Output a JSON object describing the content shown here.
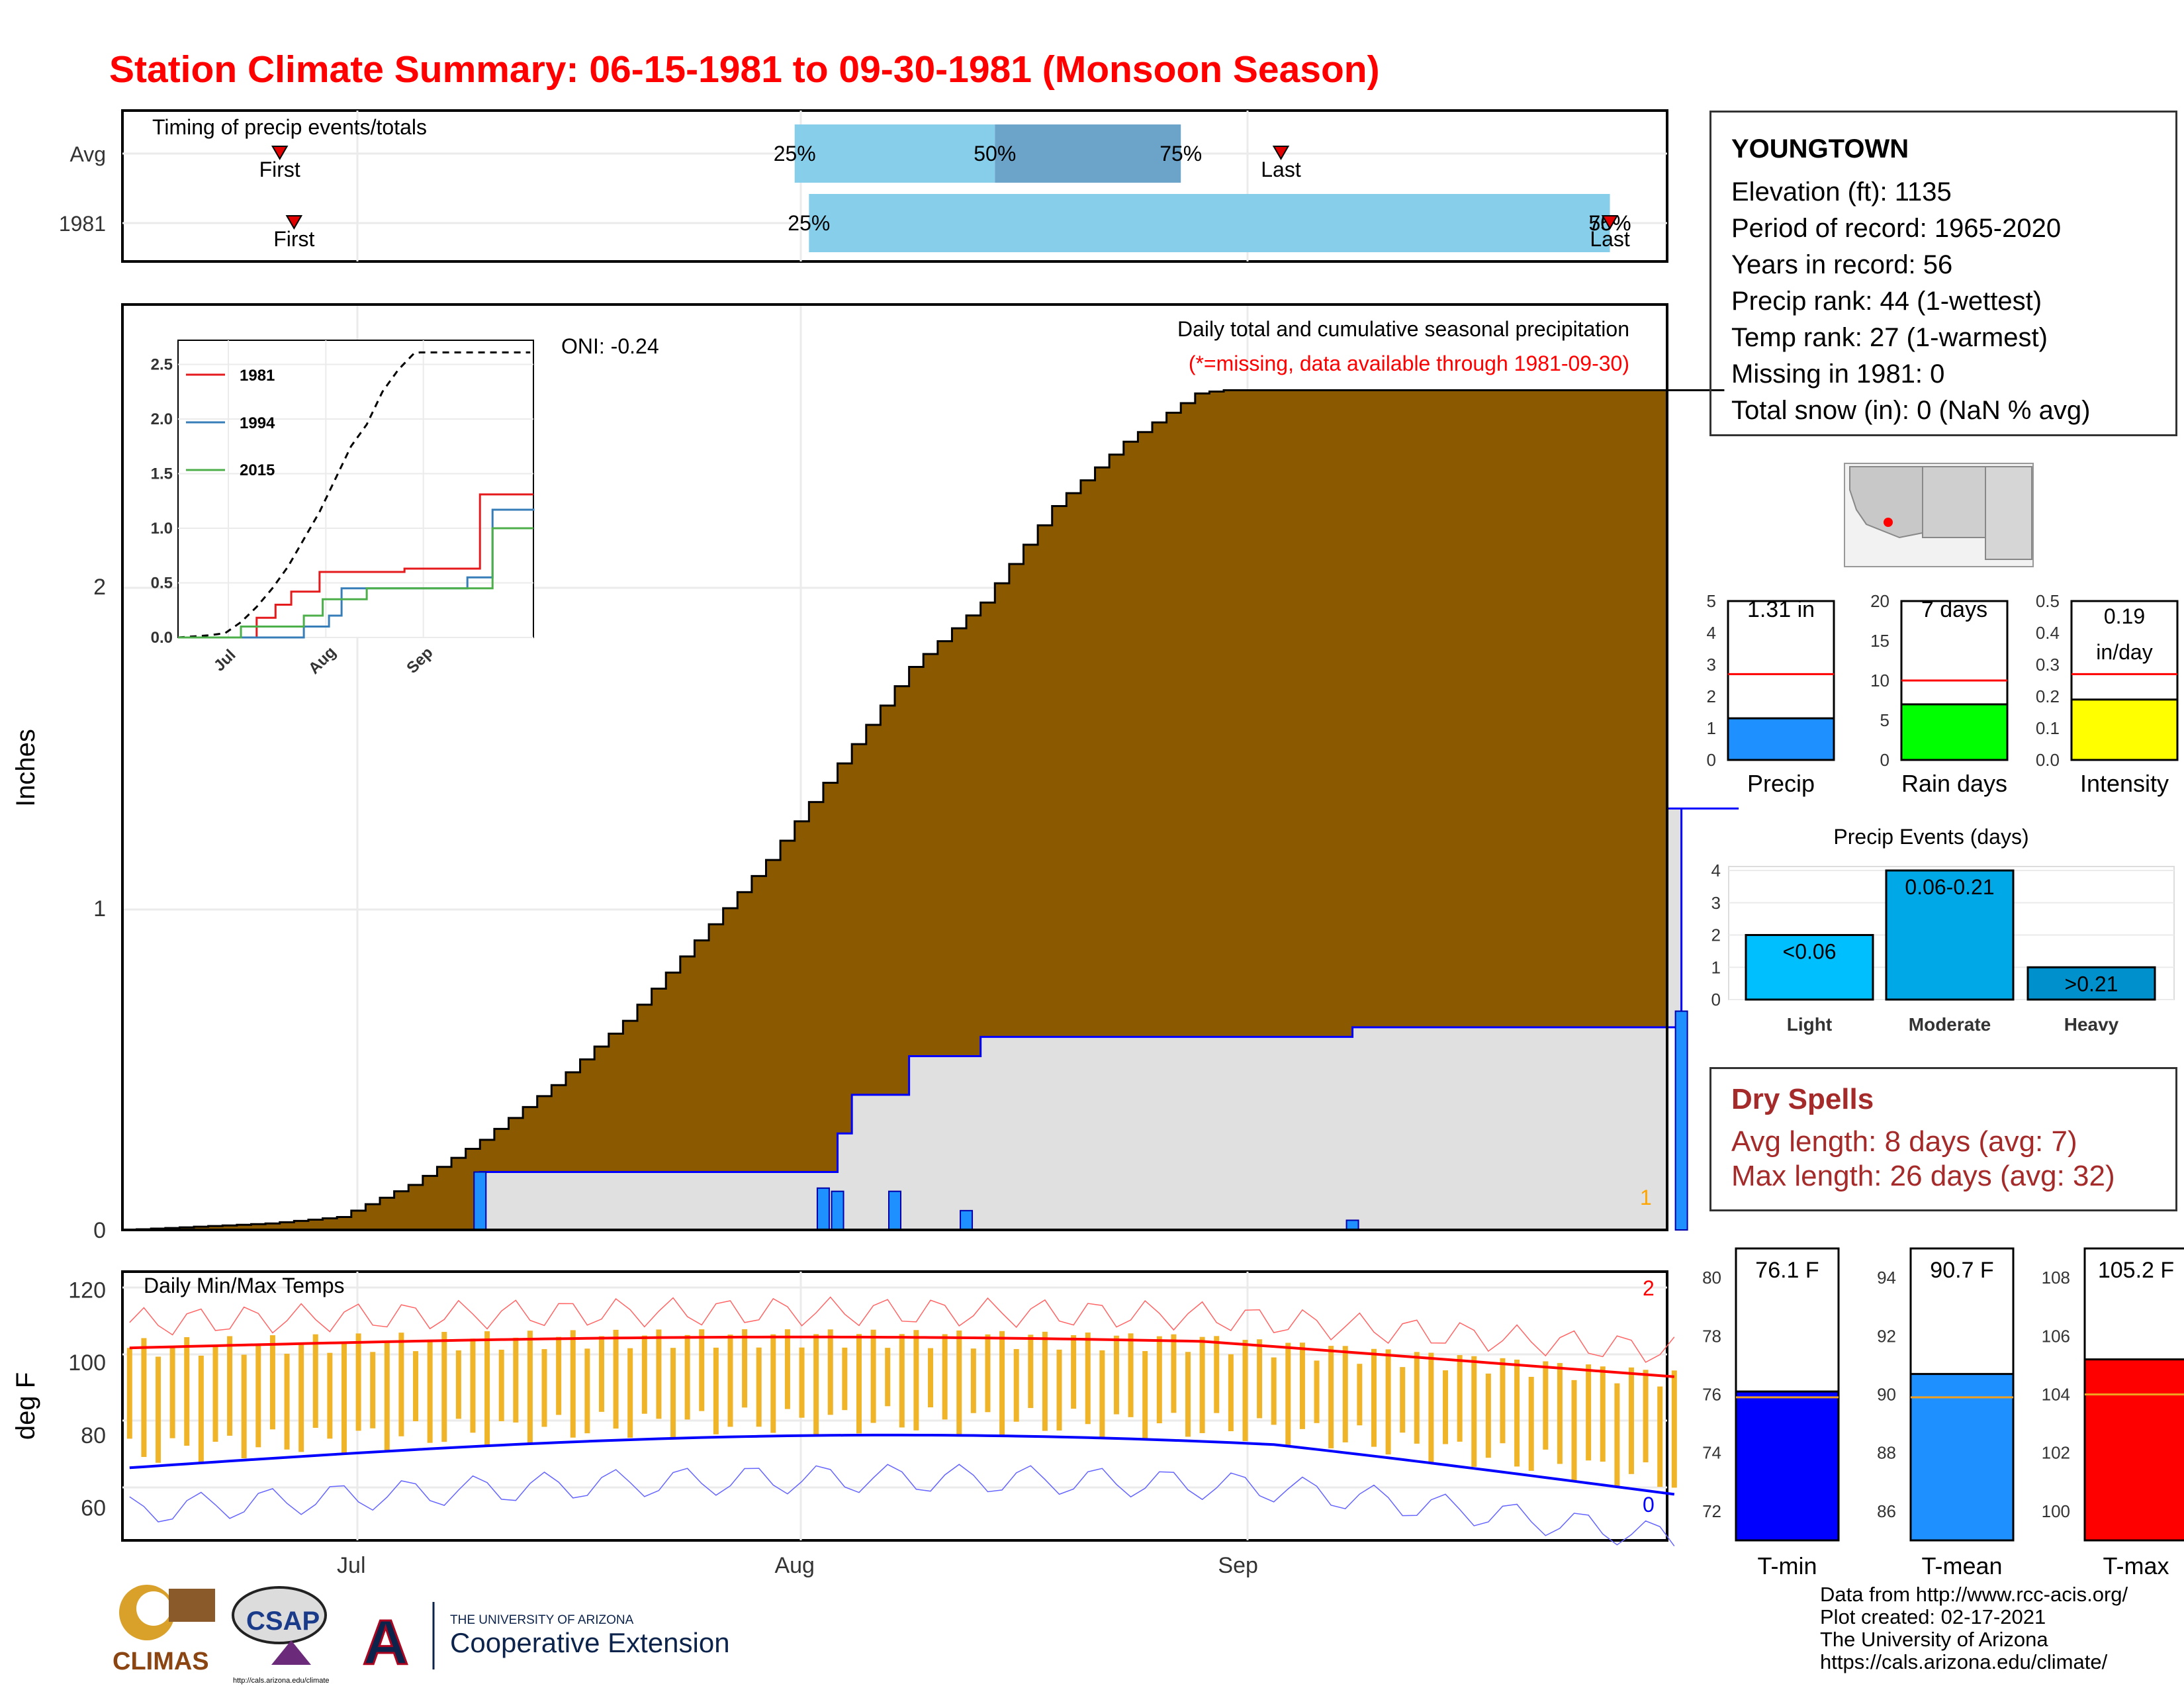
{
  "title": "Station Climate Summary: 06-15-1981 to 09-30-1981 (Monsoon Season)",
  "colors": {
    "title": "#ff0000",
    "cumulative_fill": "#8b5a00",
    "avg_fill": "#e0e0e0",
    "avg_line": "#0000ff",
    "daily_bar": "#1e90ff",
    "temp_bar": "#f0b429",
    "tmax_avg": "#ff0000",
    "tmin_avg": "#0000ff",
    "timing_light": "#87ceeb",
    "timing_dark": "#6ba3c9"
  },
  "timing": {
    "title": "Timing of precip events/totals",
    "rows": [
      {
        "label": "Avg",
        "first_label": "First",
        "last_label": "Last",
        "first": "06-26",
        "last": "09-04",
        "pct_labels": [
          "25%",
          "50%",
          "75%"
        ],
        "q25": "08-01",
        "q50": "08-15",
        "q75": "08-28"
      },
      {
        "label": "1981",
        "first_label": "First",
        "last_label": "Last",
        "first": "06-27",
        "last": "09-27",
        "pct_labels": [
          "25%",
          "50%",
          "75%"
        ],
        "q25": "08-02",
        "q50": "09-27",
        "q75": "09-27"
      }
    ]
  },
  "precip_panel": {
    "title": "Daily total and cumulative seasonal precipitation",
    "subtitle": "(*=missing, data available through 1981-09-30)",
    "oni": "ONI: -0.24",
    "ylabel": "Inches",
    "corner_count": "1"
  },
  "inset": {
    "legend": [
      "1981",
      "1994",
      "2015"
    ],
    "legend_colors": [
      "#e41a1c",
      "#377eb8",
      "#4daf4a"
    ]
  },
  "temp_panel": {
    "title": "Daily Min/Max Temps",
    "ylabel": "deg F",
    "count_max": "2",
    "count_min": "0"
  },
  "station": {
    "name": "YOUNGTOWN",
    "lines": [
      "Elevation (ft): 1135",
      "Period of record: 1965-2020",
      "Years in record: 56",
      "Precip rank: 44 (1-wettest)",
      "Temp rank: 27 (1-warmest)",
      "Missing in 1981: 0",
      "Total snow (in): 0 (NaN % avg)"
    ]
  },
  "summary_bars": [
    {
      "label": "Precip",
      "value_text": "1.31 in",
      "value": 1.31,
      "avg": 2.7,
      "ymax": 5,
      "ticks": [
        "0",
        "1",
        "2",
        "3",
        "4",
        "5"
      ],
      "color": "#1e90ff"
    },
    {
      "label": "Rain days",
      "value_text": "7 days",
      "value": 7,
      "avg": 10,
      "ymax": 20,
      "ticks": [
        "0",
        "5",
        "10",
        "15",
        "20"
      ],
      "color": "#00ff00"
    },
    {
      "label": "Intensity",
      "value_text": "0.19 in/day",
      "value_line1": "0.19",
      "value_line2": "in/day",
      "value": 0.19,
      "avg": 0.27,
      "ymax": 0.5,
      "ticks": [
        "0.0",
        "0.1",
        "0.2",
        "0.3",
        "0.4",
        "0.5"
      ],
      "color": "#ffff00"
    }
  ],
  "events": {
    "title": "Precip Events (days)",
    "categories": [
      "Light",
      "Moderate",
      "Heavy"
    ],
    "labels": [
      "<0.06",
      "0.06-0.21",
      ">0.21"
    ],
    "values": [
      2,
      4,
      1
    ],
    "ticks": [
      "0",
      "1",
      "2",
      "3",
      "4"
    ]
  },
  "dry_spells": {
    "title": "Dry Spells",
    "avg_length": "Avg length: 8 days (avg: 7)",
    "max_length": "Max length: 26 days (avg: 32)"
  },
  "temp_bars": [
    {
      "label": "T-min",
      "value_text": "76.1 F",
      "value": 76.1,
      "avg": 75.9,
      "ymin": 71,
      "ymax": 81,
      "ticks": [
        "72",
        "74",
        "76",
        "78",
        "80"
      ],
      "color": "#0000ff"
    },
    {
      "label": "T-mean",
      "value_text": "90.7 F",
      "value": 90.7,
      "avg": 89.9,
      "ymin": 85,
      "ymax": 95,
      "ticks": [
        "86",
        "88",
        "90",
        "92",
        "94"
      ],
      "color": "#1e90ff"
    },
    {
      "label": "T-max",
      "value_text": "105.2 F",
      "value": 105.2,
      "avg": 104.0,
      "ymin": 99,
      "ymax": 109,
      "ticks": [
        "100",
        "102",
        "104",
        "106",
        "108"
      ],
      "color": "#ff0000"
    }
  ],
  "logos": {
    "climas": "CLIMAS",
    "csap": "CSAP",
    "csap_url": "http://cals.arizona.edu/climate",
    "ua_line1": "THE UNIVERSITY OF ARIZONA",
    "ua_line2": "Cooperative Extension"
  },
  "credits": [
    "Data from http://www.rcc-acis.org/",
    "Plot created: 02-17-2021",
    "The University of Arizona",
    "https://cals.arizona.edu/climate/"
  ],
  "chart_data": [
    {
      "type": "area",
      "name": "cumulative_precip",
      "x_labels": [
        "Jul",
        "Aug",
        "Sep"
      ],
      "yticks": [
        "0",
        "1",
        "2"
      ],
      "ylim": [
        0,
        2.8
      ],
      "cumulative_avg_points": [
        [
          0,
          0
        ],
        [
          10,
          0.01
        ],
        [
          20,
          0.02
        ],
        [
          30,
          0.04
        ],
        [
          40,
          0.14
        ],
        [
          50,
          0.28
        ],
        [
          60,
          0.45
        ],
        [
          70,
          0.65
        ],
        [
          80,
          0.9
        ],
        [
          90,
          1.15
        ],
        [
          100,
          1.45
        ],
        [
          110,
          1.75
        ],
        [
          120,
          1.95
        ],
        [
          130,
          2.25
        ],
        [
          140,
          2.45
        ],
        [
          150,
          2.6
        ],
        [
          160,
          2.63
        ],
        [
          170,
          2.72
        ],
        [
          180,
          2.83
        ],
        [
          190,
          2.9
        ],
        [
          200,
          3.02
        ],
        [
          210,
          3.1
        ],
        [
          220,
          3.15
        ],
        [
          230,
          3.17
        ]
      ],
      "cumulative_1981": [
        [
          0,
          0
        ],
        [
          25,
          0.18
        ],
        [
          49,
          0.18
        ],
        [
          50,
          0.3
        ],
        [
          51,
          0.42
        ],
        [
          54,
          0.42
        ],
        [
          55,
          0.54
        ],
        [
          59,
          0.54
        ],
        [
          60,
          0.6
        ],
        [
          85,
          0.6
        ],
        [
          86,
          0.63
        ],
        [
          108,
          0.63
        ],
        [
          109,
          1.31
        ],
        [
          113,
          1.31
        ]
      ],
      "daily_1981": [
        [
          25,
          0.18
        ],
        [
          49,
          0.13
        ],
        [
          50,
          0.12
        ],
        [
          54,
          0.12
        ],
        [
          59,
          0.06
        ],
        [
          86,
          0.03
        ],
        [
          109,
          0.68
        ]
      ]
    },
    {
      "type": "line",
      "name": "inset_cumulative",
      "yticks": [
        "0.0",
        "0.5",
        "1.0",
        "1.5",
        "2.0",
        "2.5"
      ],
      "xticks": [
        "Jul",
        "Aug",
        "Sep"
      ],
      "ylim": [
        0,
        2.6
      ],
      "series": [
        {
          "name": "1981",
          "points": [
            [
              0,
              0
            ],
            [
              25,
              0.18
            ],
            [
              30,
              0.18
            ],
            [
              31,
              0.3
            ],
            [
              36,
              0.42
            ],
            [
              45,
              0.6
            ],
            [
              72,
              0.63
            ],
            [
              84,
              0.63
            ],
            [
              96,
              1.31
            ],
            [
              113,
              1.31
            ]
          ]
        },
        {
          "name": "1994",
          "points": [
            [
              0,
              0
            ],
            [
              40,
              0.1
            ],
            [
              48,
              0.2
            ],
            [
              52,
              0.45
            ],
            [
              85,
              0.45
            ],
            [
              92,
              0.55
            ],
            [
              100,
              1.17
            ],
            [
              113,
              1.18
            ]
          ]
        },
        {
          "name": "2015",
          "points": [
            [
              0,
              0
            ],
            [
              20,
              0.1
            ],
            [
              40,
              0.2
            ],
            [
              46,
              0.35
            ],
            [
              60,
              0.45
            ],
            [
              95,
              0.45
            ],
            [
              100,
              1.0
            ],
            [
              113,
              1.0
            ]
          ]
        }
      ]
    },
    {
      "type": "bar",
      "name": "daily_temps",
      "yticks": [
        "60",
        "80",
        "100",
        "120"
      ],
      "ylim": [
        51,
        125
      ]
    }
  ]
}
